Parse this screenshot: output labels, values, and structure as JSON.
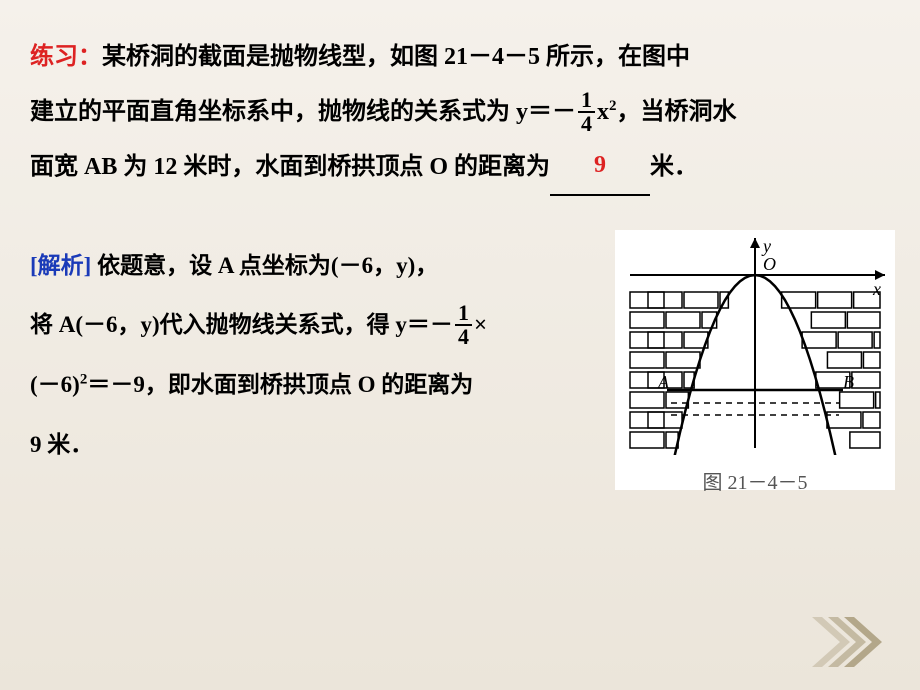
{
  "problem": {
    "label": "练习：",
    "label_color": "#cc2222",
    "part1_a": "某桥洞的截面是抛物线型，如图 ",
    "fig_ref": "21－4－5",
    "part1_b": " 所示，在图中",
    "part2": "建立的平面直角坐标系中，抛物线的关系式为 ",
    "eq_lhs": "y＝－",
    "frac_num": "1",
    "frac_den": "4",
    "eq_rhs": "x",
    "eq_exp": "2",
    "part3": "，当桥洞水",
    "part4_a": "面宽 AB 为 ",
    "ab_len": "12",
    "part4_b": " 米时，水面到桥拱顶点 O 的距离为",
    "answer": "9",
    "part4_c": "米．"
  },
  "solution": {
    "label": "[解析]",
    "label_color": "#1a3ab8",
    "s1": " 依题意，设 A 点坐标为(－6，y)，",
    "s2a": "将 A(－6，y)代入抛物线关系式，得 y＝－",
    "s2_num": "1",
    "s2_den": "4",
    "s2b": "×",
    "s3": "(－6)",
    "s3_exp": "2",
    "s3b": "＝－9，即水面到桥拱顶点 O 的距离为",
    "s4": "9 米．"
  },
  "figure": {
    "caption": "图 21－4－5",
    "y_label": "y",
    "x_label": "x",
    "O_label": "O",
    "A_label": "A",
    "B_label": "B",
    "bg": "#ffffff",
    "stroke": "#000000",
    "water_dash": "6,5"
  },
  "chevron_color": "#b3a78a"
}
